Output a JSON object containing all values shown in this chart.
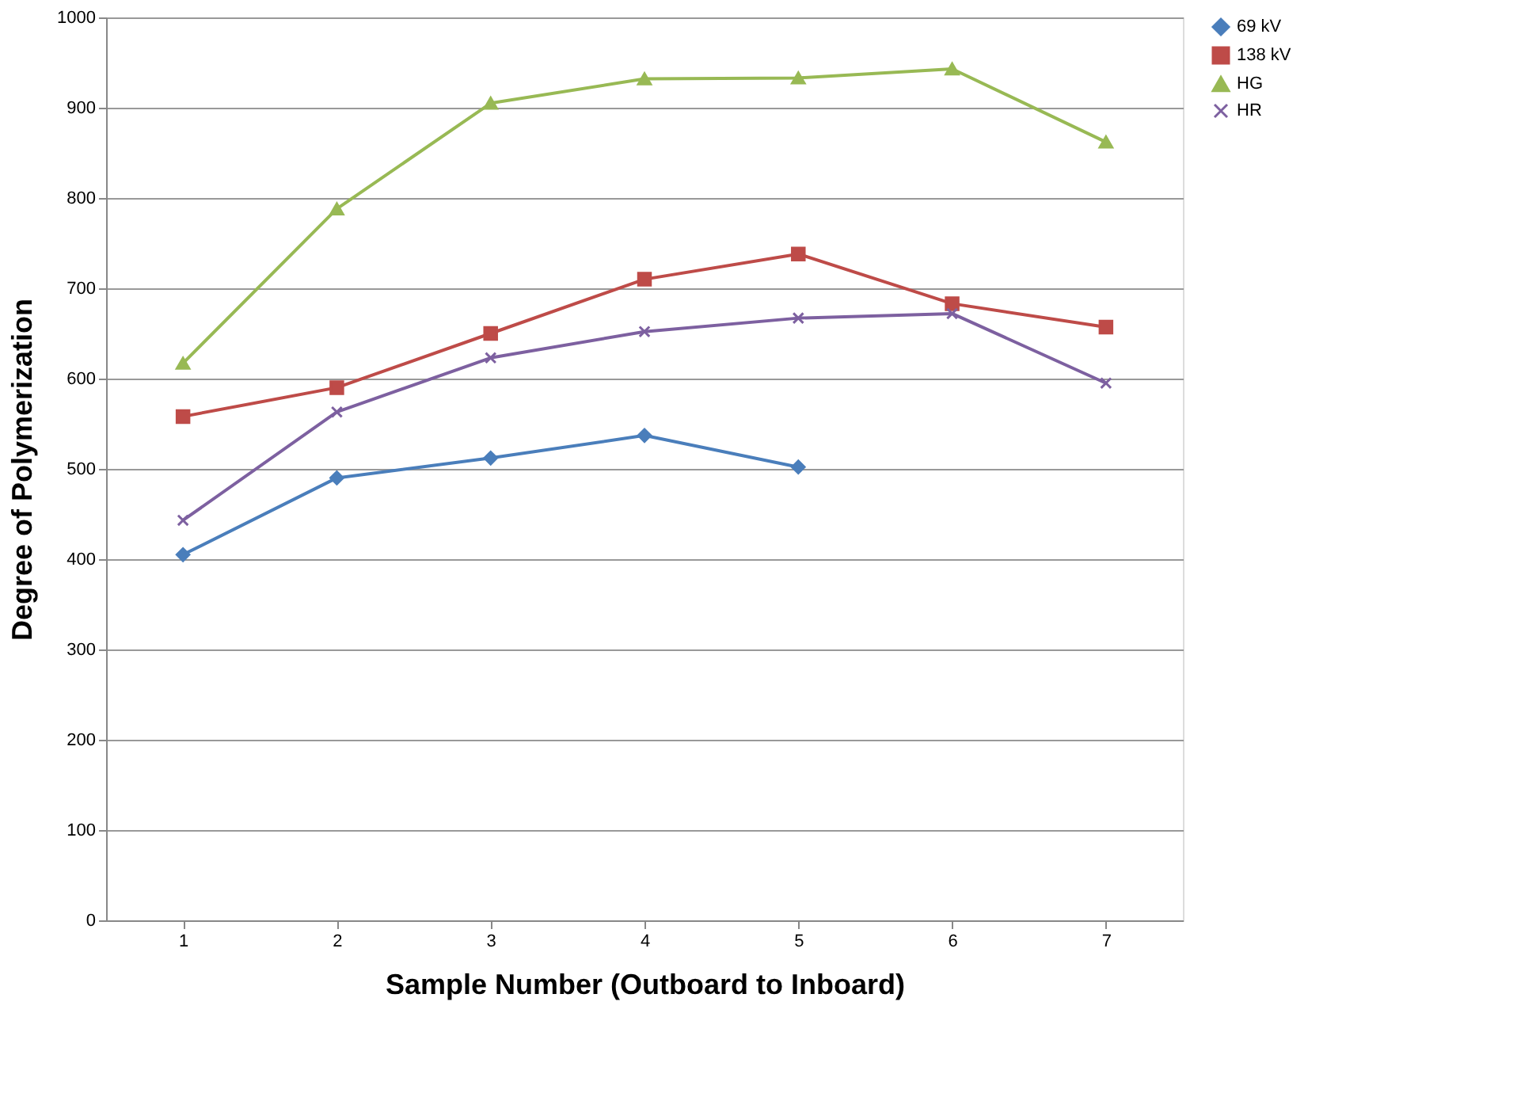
{
  "chart_data": {
    "type": "line",
    "xlabel": "Sample Number (Outboard to Inboard)",
    "ylabel": "Degree of Polymerization",
    "categories": [
      "1",
      "2",
      "3",
      "4",
      "5",
      "6",
      "7"
    ],
    "series": [
      {
        "name": "69 kV",
        "color": "#4a7ebb",
        "marker": "diamond",
        "values": [
          405,
          490,
          512,
          537,
          502,
          null,
          null
        ]
      },
      {
        "name": "138 kV",
        "color": "#be4b48",
        "marker": "square",
        "values": [
          558,
          590,
          650,
          710,
          738,
          683,
          657
        ]
      },
      {
        "name": "HG",
        "color": "#98b954",
        "marker": "triangle",
        "values": [
          617,
          788,
          905,
          932,
          933,
          943,
          862
        ]
      },
      {
        "name": "HR",
        "color": "#7d60a0",
        "marker": "cross",
        "values": [
          443,
          563,
          623,
          652,
          667,
          672,
          595
        ]
      }
    ],
    "ylim": [
      0,
      1000
    ],
    "yticks": [
      0,
      100,
      200,
      300,
      400,
      500,
      600,
      700,
      800,
      900,
      1000
    ],
    "grid": "y",
    "legend": "right",
    "line_style": "solid"
  }
}
